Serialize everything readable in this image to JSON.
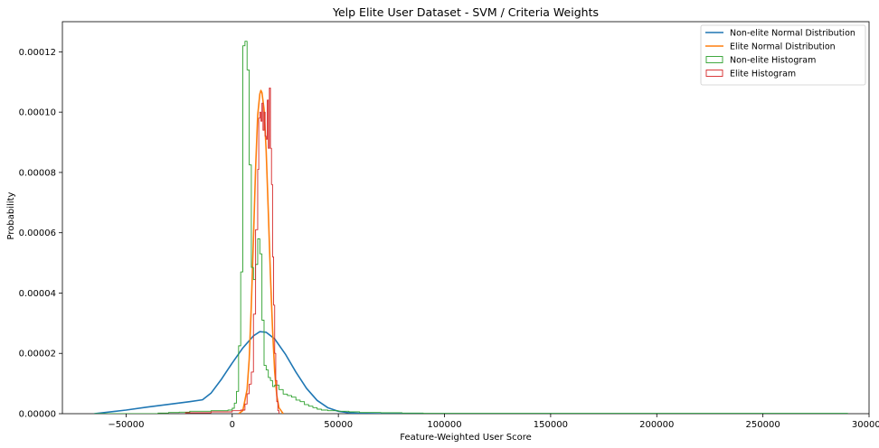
{
  "chart_data": {
    "type": "line",
    "title": "Yelp Elite User Dataset - SVM / Criteria Weights",
    "xlabel": "Feature-Weighted User Score",
    "ylabel": "Probability",
    "xlim": [
      -80000,
      300000
    ],
    "ylim": [
      0,
      0.00013
    ],
    "x_ticks": [
      -50000,
      0,
      50000,
      100000,
      150000,
      200000,
      250000,
      300000
    ],
    "x_tick_labels": [
      "−50000",
      "0",
      "50000",
      "100000",
      "150000",
      "200000",
      "250000",
      "300000"
    ],
    "y_ticks": [
      0,
      2e-05,
      4e-05,
      6e-05,
      8e-05,
      0.0001,
      0.00012
    ],
    "y_tick_labels": [
      "0.00000",
      "0.00002",
      "0.00004",
      "0.00006",
      "0.00008",
      "0.00010",
      "0.00012"
    ],
    "grid": false,
    "legend_position": "top-right",
    "series": [
      {
        "name": "Non-elite Normal Distribution",
        "kind": "line",
        "color": "#1f77b4",
        "x": [
          -65000,
          -50000,
          -40000,
          -30000,
          -20000,
          -14000,
          -10000,
          -5000,
          0,
          5000,
          10000,
          13000,
          16000,
          20000,
          25000,
          30000,
          35000,
          40000,
          45000,
          50000,
          55000,
          60000,
          70000,
          80000,
          100000,
          150000,
          200000,
          250000,
          290000
        ],
        "y": [
          0,
          1.2e-06,
          2.2e-06,
          3.1e-06,
          4e-06,
          4.6e-06,
          6.8e-06,
          1.15e-05,
          1.68e-05,
          2.18e-05,
          2.58e-05,
          2.72e-05,
          2.7e-05,
          2.48e-05,
          1.98e-05,
          1.38e-05,
          8.4e-06,
          4.4e-06,
          2e-06,
          8e-07,
          3e-07,
          1e-07,
          0,
          0,
          0,
          0,
          0,
          0,
          0
        ]
      },
      {
        "name": "Elite Normal Distribution",
        "kind": "line",
        "color": "#ff7f0e",
        "x": [
          3000,
          5000,
          7000,
          8000,
          9000,
          10000,
          11000,
          12000,
          13000,
          13500,
          14000,
          15000,
          16000,
          17000,
          18000,
          19000,
          20000,
          21000,
          22000,
          24000
        ],
        "y": [
          0,
          1e-06,
          8e-06,
          1.8e-05,
          3.6e-05,
          5.8e-05,
          8.1e-05,
          9.9e-05,
          0.000106,
          0.0001072,
          0.0001065,
          0.000101,
          8.7e-05,
          6.7e-05,
          4.6e-05,
          2.8e-05,
          1.4e-05,
          6e-06,
          2e-06,
          0
        ]
      },
      {
        "name": "Non-elite Histogram",
        "kind": "step",
        "color": "#2ca02c",
        "x": [
          -65000,
          -60000,
          -55000,
          -50000,
          -45000,
          -40000,
          -35000,
          -30000,
          -25000,
          -20000,
          -15000,
          -10000,
          -5000,
          -2000,
          0,
          1000,
          2000,
          3000,
          4000,
          5000,
          6000,
          7000,
          8000,
          9000,
          10000,
          11000,
          12000,
          13000,
          14000,
          15000,
          16000,
          17000,
          18000,
          19000,
          20000,
          22000,
          24000,
          26000,
          28000,
          30000,
          32000,
          34000,
          36000,
          38000,
          40000,
          42000,
          45000,
          50000,
          55000,
          60000,
          70000,
          80000,
          90000,
          100000,
          150000,
          175000,
          200000,
          250000,
          290000
        ],
        "y": [
          0,
          0,
          0,
          0,
          0,
          0,
          2e-07,
          4e-07,
          5e-07,
          8e-07,
          8e-07,
          1e-06,
          1e-06,
          1.2e-06,
          1.8e-06,
          3.5e-06,
          7.4e-06,
          2.25e-05,
          4.7e-05,
          0.000122,
          0.0001235,
          0.000114,
          8.25e-05,
          4.85e-05,
          4.45e-05,
          4.95e-05,
          5.8e-05,
          5.3e-05,
          3.1e-05,
          1.6e-05,
          1.45e-05,
          1.2e-05,
          1.1e-05,
          9e-06,
          9.5e-06,
          8e-06,
          6.5e-06,
          6e-06,
          5.5e-06,
          4.5e-06,
          4e-06,
          3e-06,
          2.5e-06,
          2e-06,
          1.5e-06,
          1.2e-06,
          1e-06,
          8e-07,
          6e-07,
          4e-07,
          3e-07,
          2e-07,
          1e-07,
          1e-07,
          1e-07,
          1e-07,
          1e-07,
          1e-07,
          0
        ]
      },
      {
        "name": "Elite Histogram",
        "kind": "step",
        "color": "#d62728",
        "x": [
          -22000,
          -10000,
          0,
          4000,
          6000,
          7000,
          8000,
          9000,
          10000,
          11000,
          12000,
          12500,
          13000,
          13500,
          14000,
          14500,
          15000,
          15500,
          16000,
          16500,
          17000,
          17500,
          18000,
          18500,
          19000,
          19500,
          20000,
          20500,
          21000,
          21500,
          22000
        ],
        "y": [
          3e-07,
          6e-07,
          1e-06,
          1.2e-06,
          3.2e-06,
          6.6e-06,
          9.8e-06,
          1.38e-05,
          3.3e-05,
          6.1e-05,
          8.1e-05,
          9.8e-05,
          0.0001,
          9.7e-05,
          0.000103,
          9.4e-05,
          0.0001,
          9.2e-05,
          9.1e-05,
          0.000104,
          8.8e-05,
          0.000108,
          8.8e-05,
          7.6e-05,
          5.2e-05,
          3.6e-05,
          2e-05,
          1.1e-05,
          4e-06,
          1e-06,
          0
        ]
      }
    ]
  }
}
